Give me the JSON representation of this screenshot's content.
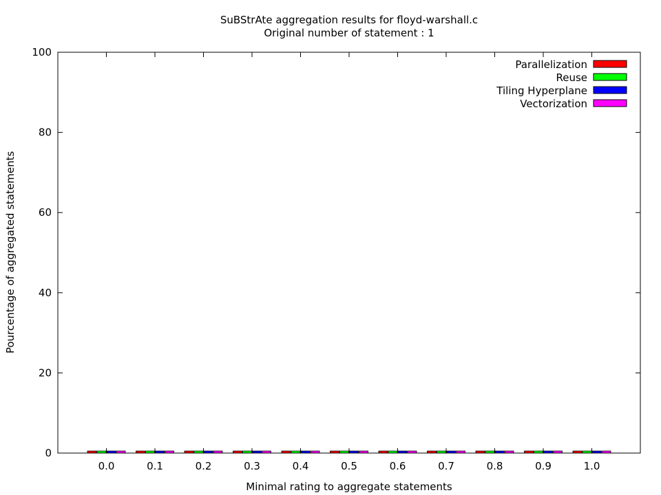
{
  "chart_data": {
    "type": "bar",
    "title": "SuBStrAte aggregation results for floyd-warshall.c",
    "subtitle": "Original number of statement : 1",
    "xlabel": "Minimal rating to aggregate statements",
    "ylabel": "Pourcentage of aggregated statements",
    "ylim": [
      0,
      100
    ],
    "yticks": [
      "0",
      "20",
      "40",
      "60",
      "80",
      "100"
    ],
    "categories": [
      "0.0",
      "0.1",
      "0.2",
      "0.3",
      "0.4",
      "0.5",
      "0.6",
      "0.7",
      "0.8",
      "0.9",
      "1.0"
    ],
    "legend_position": "top-right",
    "grid": false,
    "series": [
      {
        "name": "Parallelization",
        "color": "#ff0000",
        "values": [
          0,
          0,
          0,
          0,
          0,
          0,
          0,
          0,
          0,
          0,
          0
        ]
      },
      {
        "name": "Reuse",
        "color": "#00ff00",
        "values": [
          0,
          0,
          0,
          0,
          0,
          0,
          0,
          0,
          0,
          0,
          0
        ]
      },
      {
        "name": "Tiling Hyperplane",
        "color": "#0000ff",
        "values": [
          0,
          0,
          0,
          0,
          0,
          0,
          0,
          0,
          0,
          0,
          0
        ]
      },
      {
        "name": "Vectorization",
        "color": "#ff00ff",
        "values": [
          0,
          0,
          0,
          0,
          0,
          0,
          0,
          0,
          0,
          0,
          0
        ]
      }
    ]
  }
}
